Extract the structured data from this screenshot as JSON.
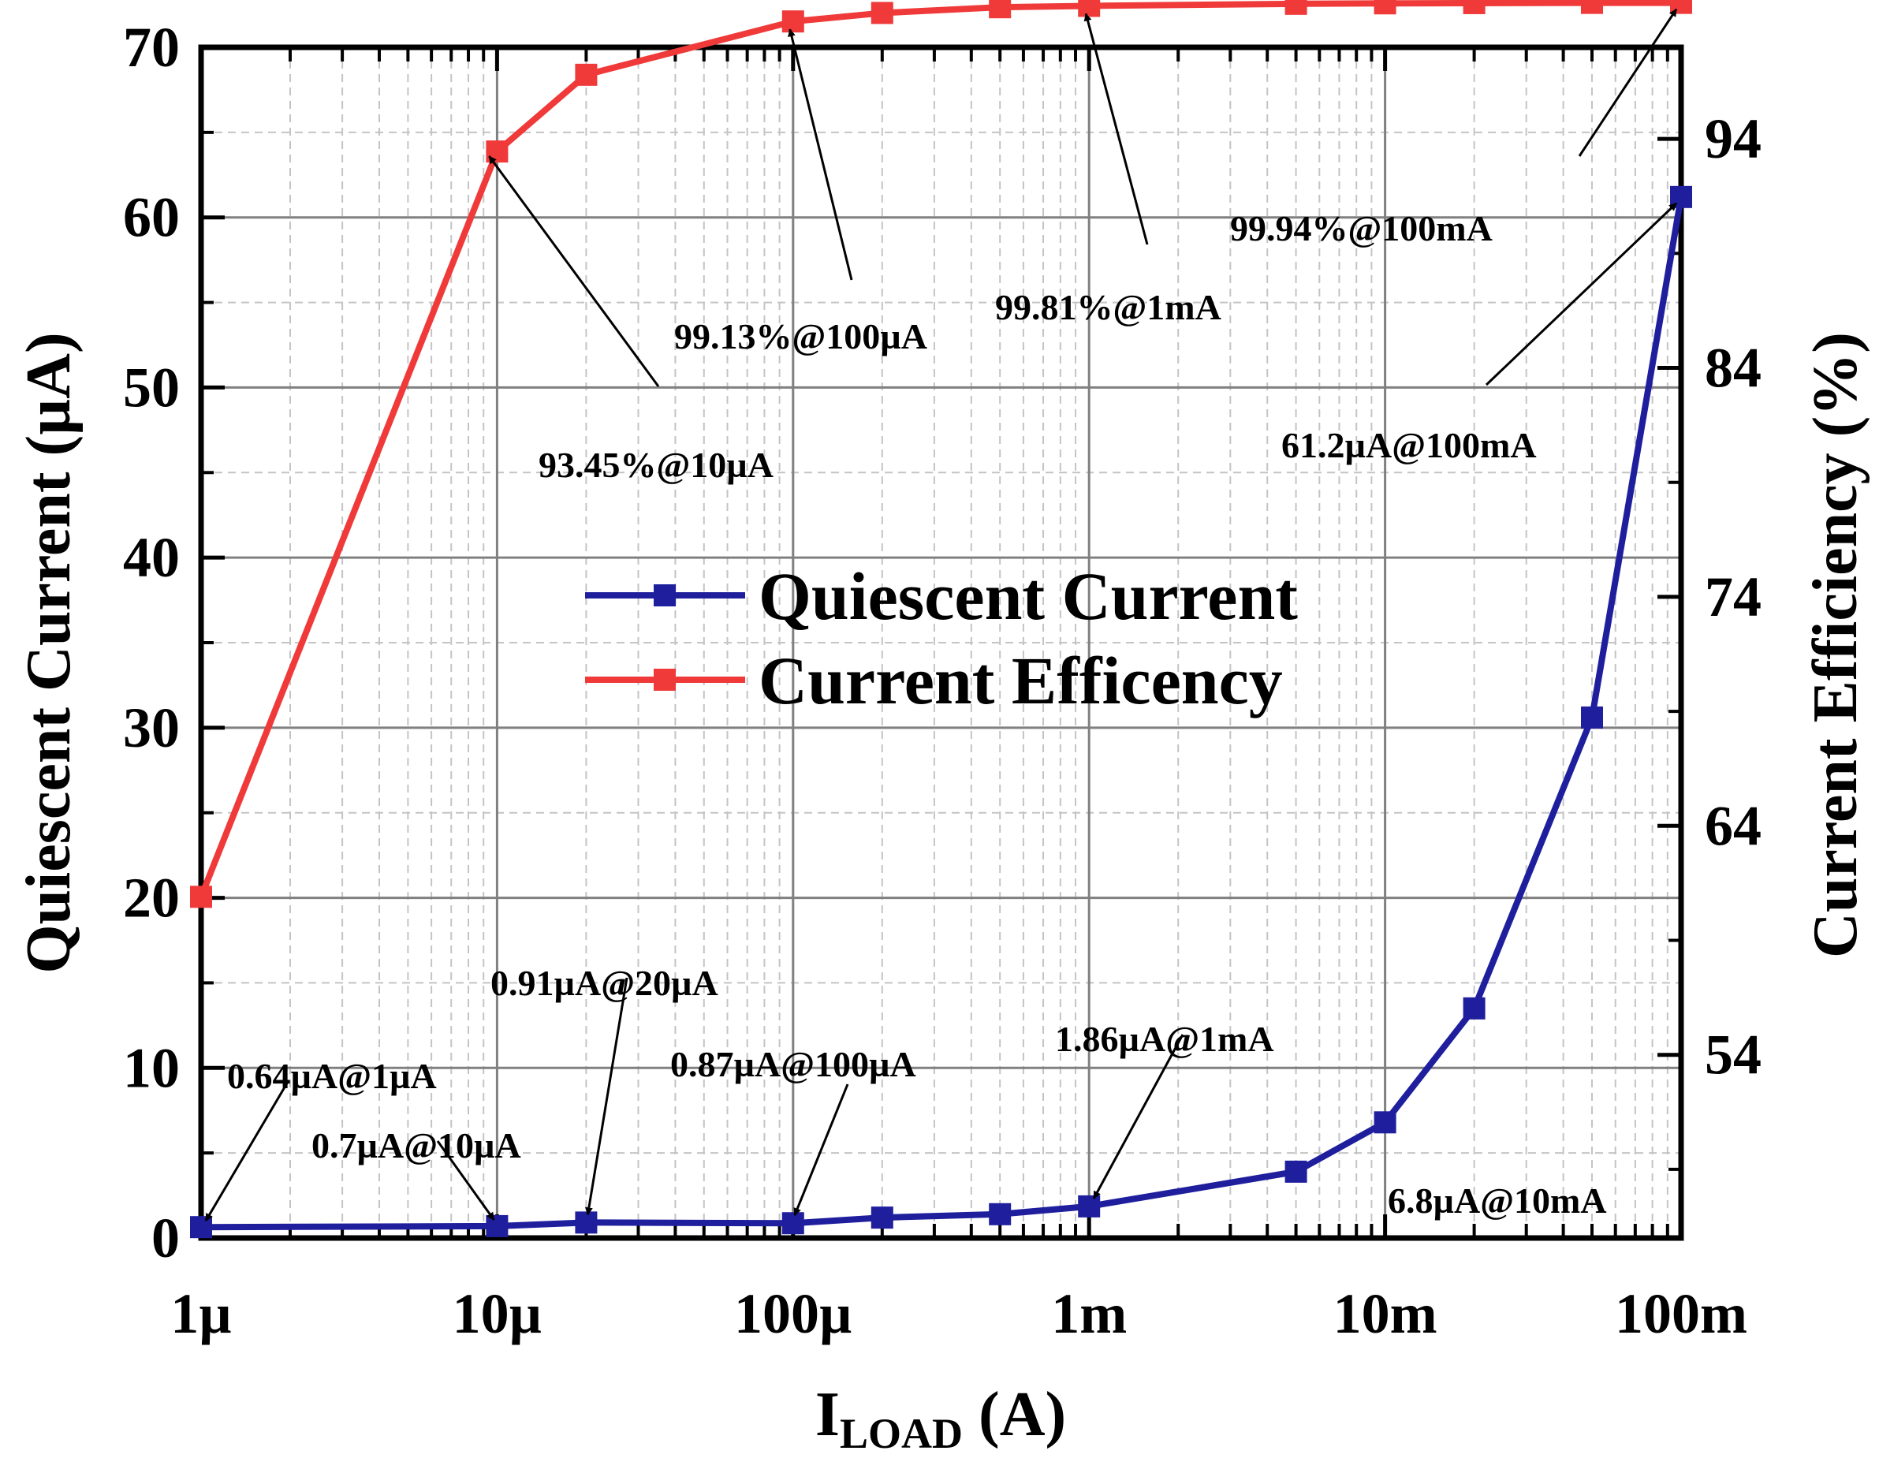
{
  "chart_data": {
    "type": "line",
    "xlabel_main": "I",
    "xlabel_sub": "LOAD",
    "xlabel_unit": " (A)",
    "ylabel_left": "Quiescent Current (µA)",
    "ylabel_right": "Current Efficiency (%)",
    "x_scale": "log",
    "xlim": [
      1e-06,
      0.1
    ],
    "ylim_left": [
      0,
      70
    ],
    "ylim_right": [
      46,
      98
    ],
    "grid": true,
    "legend_position": "center",
    "x_ticks": [
      {
        "value": 1e-06,
        "label": "1µ"
      },
      {
        "value": 1e-05,
        "label": "10µ"
      },
      {
        "value": 0.0001,
        "label": "100µ"
      },
      {
        "value": 0.001,
        "label": "1m"
      },
      {
        "value": 0.01,
        "label": "10m"
      },
      {
        "value": 0.1,
        "label": "100m"
      }
    ],
    "y_left_ticks": [
      {
        "value": 0,
        "label": "0"
      },
      {
        "value": 10,
        "label": "10"
      },
      {
        "value": 20,
        "label": "20"
      },
      {
        "value": 30,
        "label": "30"
      },
      {
        "value": 40,
        "label": "40"
      },
      {
        "value": 50,
        "label": "50"
      },
      {
        "value": 60,
        "label": "60"
      },
      {
        "value": 70,
        "label": "70"
      }
    ],
    "y_right_ticks": [
      {
        "value": 54,
        "label": "54"
      },
      {
        "value": 64,
        "label": "64"
      },
      {
        "value": 74,
        "label": "74"
      },
      {
        "value": 84,
        "label": "84"
      },
      {
        "value": 94,
        "label": "94"
      }
    ],
    "series": [
      {
        "name": "Quiescent Current",
        "axis": "left",
        "color": "#1f1f9e",
        "x": [
          1e-06,
          1e-05,
          2e-05,
          0.0001,
          0.0002,
          0.0005,
          0.001,
          0.005,
          0.01,
          0.02,
          0.05,
          0.1
        ],
        "values": [
          0.64,
          0.7,
          0.91,
          0.87,
          1.2,
          1.4,
          1.86,
          3.9,
          6.8,
          13.5,
          30.6,
          61.2
        ]
      },
      {
        "name": "Current Efficency",
        "axis": "right",
        "color": "#f03a3a",
        "x": [
          1e-06,
          1e-05,
          2e-05,
          0.0001,
          0.0002,
          0.0005,
          0.001,
          0.005,
          0.01,
          0.02,
          0.05,
          0.1
        ],
        "values": [
          60.9,
          93.45,
          96.8,
          99.13,
          99.5,
          99.75,
          99.81,
          99.9,
          99.92,
          99.93,
          99.94,
          99.94
        ]
      }
    ],
    "annotations": [
      {
        "text": "0.64µA@1µA",
        "tx": 1e-06,
        "ty": 0.64,
        "axis": "left"
      },
      {
        "text": "0.7µA@10µA",
        "tx": 1e-05,
        "ty": 0.7,
        "axis": "left"
      },
      {
        "text": "0.91µA@20µA",
        "tx": 2e-05,
        "ty": 0.91,
        "axis": "left"
      },
      {
        "text": "0.87µA@100µA",
        "tx": 0.0001,
        "ty": 0.87,
        "axis": "left"
      },
      {
        "text": "1.86µA@1mA",
        "tx": 0.001,
        "ty": 1.86,
        "axis": "left"
      },
      {
        "text": "6.8µA@10mA",
        "tx": 0.01,
        "ty": 6.8,
        "axis": "left"
      },
      {
        "text": "61.2µA@100mA",
        "tx": 0.1,
        "ty": 61.2,
        "axis": "left"
      },
      {
        "text": "93.45%@10µA",
        "tx": 1e-05,
        "ty": 93.45,
        "axis": "right"
      },
      {
        "text": "99.13%@100µA",
        "tx": 0.0001,
        "ty": 99.13,
        "axis": "right"
      },
      {
        "text": "99.81%@1mA",
        "tx": 0.001,
        "ty": 99.81,
        "axis": "right"
      },
      {
        "text": "99.94%@100mA",
        "tx": 0.1,
        "ty": 99.94,
        "axis": "right"
      }
    ]
  }
}
